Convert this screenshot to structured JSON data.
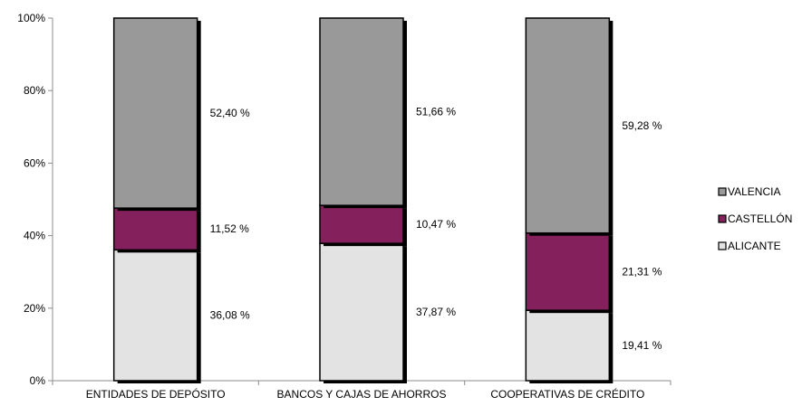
{
  "chart_data": {
    "type": "bar",
    "stacked": "percent",
    "categories": [
      "ENTIDADES DE DEPÓSITO",
      "BANCOS Y CAJAS DE AHORROS",
      "COOPERATIVAS DE CRÉDITO"
    ],
    "series": [
      {
        "name": "ALICANTE",
        "values": [
          36.08,
          37.87,
          19.41
        ],
        "labels": [
          "36,08 %",
          "37,87 %",
          "19,41 %"
        ],
        "color": "#e3e3e3"
      },
      {
        "name": "CASTELLÓN",
        "values": [
          11.52,
          10.47,
          21.31
        ],
        "labels": [
          "11,52 %",
          "10,47 %",
          "21,31 %"
        ],
        "color": "#84205c"
      },
      {
        "name": "VALENCIA",
        "values": [
          52.4,
          51.66,
          59.28
        ],
        "labels": [
          "52,40 %",
          "51,66 %",
          "59,28 %"
        ],
        "color": "#999999"
      }
    ],
    "legend_order": [
      "VALENCIA",
      "CASTELLÓN",
      "ALICANTE"
    ],
    "legend_position": "right",
    "ylim": [
      0,
      100
    ],
    "yticks": [
      "0%",
      "20%",
      "40%",
      "60%",
      "80%",
      "100%"
    ],
    "grid": false,
    "title": "",
    "xlabel": "",
    "ylabel": ""
  }
}
